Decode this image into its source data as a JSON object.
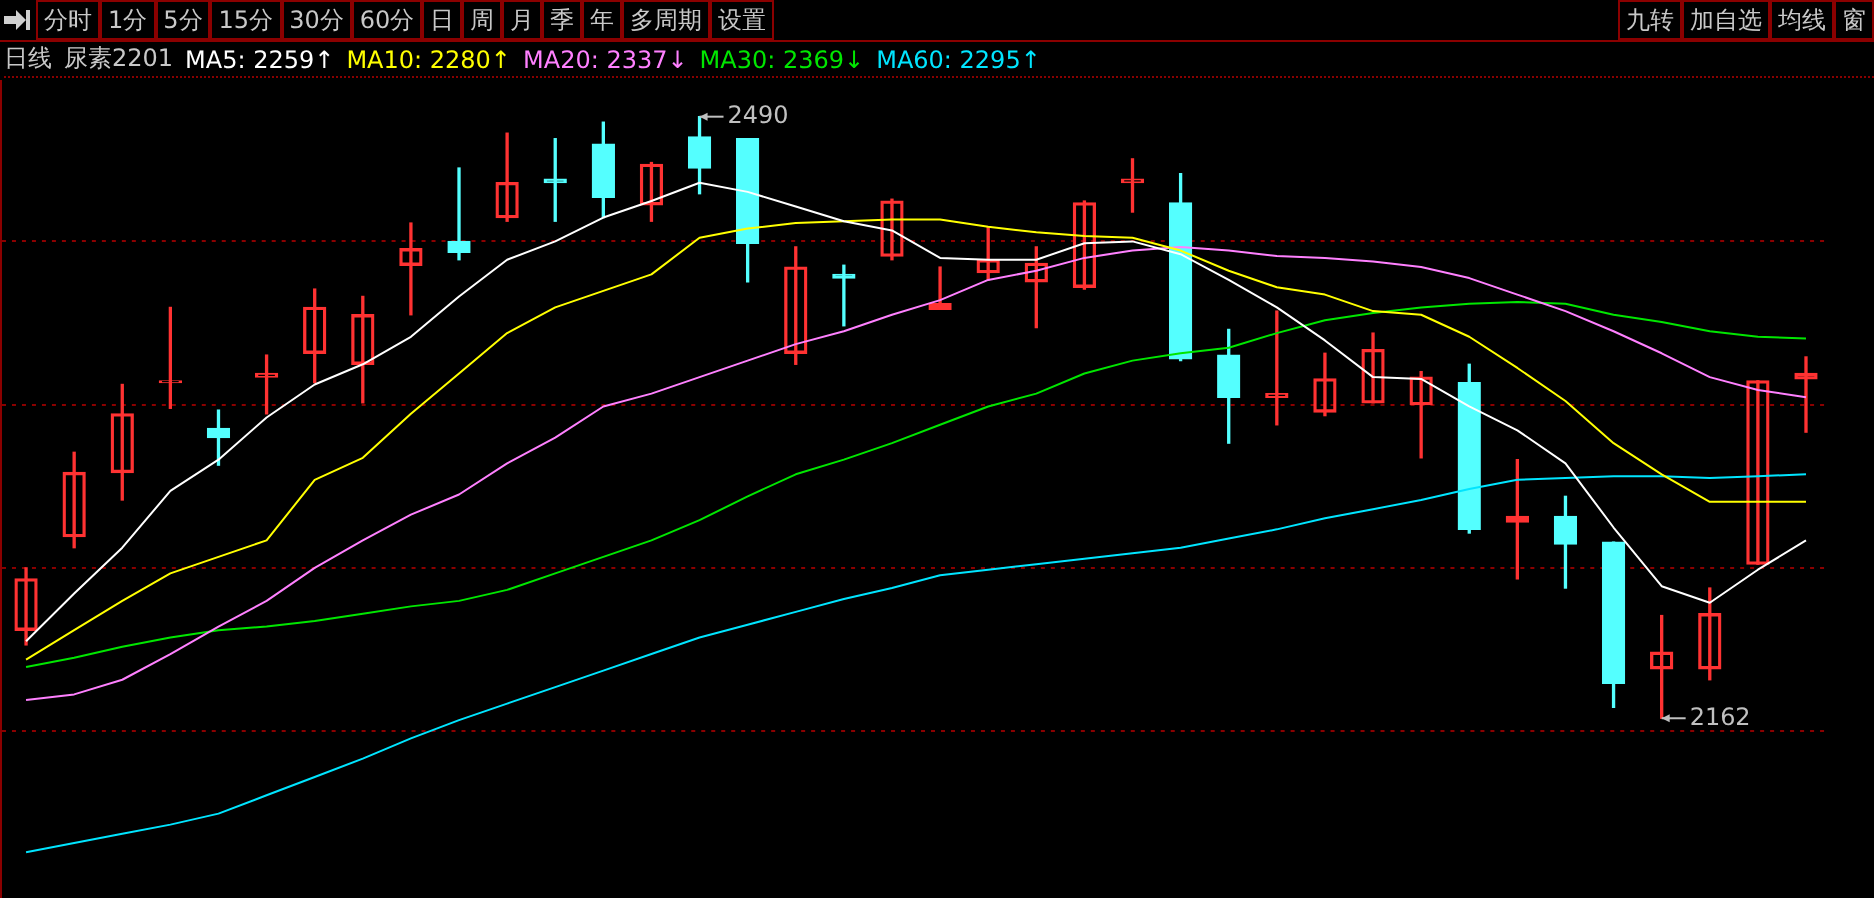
{
  "chart_data": {
    "type": "candlestick",
    "title": "日线",
    "subtitle": "尿素2201",
    "categories": [
      null,
      null,
      null,
      null,
      null,
      null,
      null,
      null,
      null,
      null,
      null,
      null,
      null,
      null,
      null,
      null,
      null,
      null,
      null,
      null,
      null,
      null,
      null,
      null,
      null,
      null,
      null,
      null,
      null,
      null,
      null,
      null,
      null,
      null,
      null,
      null,
      null,
      null
    ],
    "ohlc": [
      [
        2210,
        2244,
        2202,
        2238
      ],
      [
        2261,
        2307,
        2255,
        2296
      ],
      [
        2296,
        2344,
        2281,
        2328
      ],
      [
        2345,
        2386,
        2331,
        2346
      ],
      [
        2320,
        2330,
        2300,
        2315
      ],
      [
        2348,
        2360,
        2328,
        2350
      ],
      [
        2361,
        2396,
        2345,
        2386
      ],
      [
        2355,
        2392,
        2334,
        2382
      ],
      [
        2409,
        2432,
        2382,
        2418
      ],
      [
        2422,
        2462,
        2412,
        2416
      ],
      [
        2435,
        2481,
        2433,
        2454
      ],
      [
        2456,
        2478,
        2433,
        2454
      ],
      [
        2475,
        2487,
        2435,
        2446
      ],
      [
        2442,
        2465,
        2433,
        2464
      ],
      [
        2479,
        2490,
        2448,
        2462
      ],
      [
        2478,
        2478,
        2400,
        2421
      ],
      [
        2361,
        2419,
        2355,
        2408
      ],
      [
        2404,
        2409,
        2376,
        2402
      ],
      [
        2414,
        2445,
        2412,
        2444
      ],
      [
        2385,
        2408,
        2385,
        2388
      ],
      [
        2405,
        2430,
        2401,
        2412
      ],
      [
        2400,
        2419,
        2375,
        2410
      ],
      [
        2397,
        2444,
        2396,
        2443
      ],
      [
        2454,
        2467,
        2438,
        2456
      ],
      [
        2443,
        2459,
        2357,
        2358
      ],
      [
        2360,
        2374,
        2312,
        2337
      ],
      [
        2337,
        2384,
        2322,
        2339
      ],
      [
        2329,
        2361,
        2327,
        2347
      ],
      [
        2334,
        2372,
        2334,
        2363
      ],
      [
        2333,
        2351,
        2304,
        2348
      ],
      [
        2345,
        2355,
        2263,
        2265
      ],
      [
        2269,
        2303,
        2238,
        2272
      ],
      [
        2272,
        2283,
        2233,
        2257
      ],
      [
        2258,
        2258,
        2168,
        2181
      ],
      [
        2189,
        2218,
        2162,
        2198
      ],
      [
        2189,
        2233,
        2183,
        2219
      ],
      [
        2246,
        2346,
        2246,
        2346
      ],
      [
        2347,
        2359,
        2318,
        2350
      ]
    ],
    "colors": [
      "#ff3232",
      "#ff3232",
      "#ff3232",
      "#ff3232",
      "#54ffff",
      "#ff3232",
      "#ff3232",
      "#ff3232",
      "#ff3232",
      "#54ffff",
      "#ff3232",
      "#54ffff",
      "#54ffff",
      "#ff3232",
      "#54ffff",
      "#54ffff",
      "#ff3232",
      "#54ffff",
      "#ff3232",
      "#ff3232",
      "#ff3232",
      "#ff3232",
      "#ff3232",
      "#ff3232",
      "#54ffff",
      "#54ffff",
      "#ff3232",
      "#ff3232",
      "#ff3232",
      "#ff3232",
      "#54ffff",
      "#ff3232",
      "#54ffff",
      "#54ffff",
      "#ff3232",
      "#ff3232",
      "#ff3232",
      "#ff3232"
    ],
    "series": [
      {
        "type": "line",
        "name": "MA5: 2259↑",
        "color": "#ffffff",
        "values": [
          2204,
          2230,
          2255,
          2286,
          2303,
          2326,
          2344,
          2355,
          2370,
          2392,
          2412,
          2422,
          2435,
          2444,
          2454,
          2449,
          2441,
          2433,
          2428,
          2413,
          2412,
          2412,
          2421,
          2422,
          2415,
          2401,
          2386,
          2368,
          2348,
          2347,
          2332,
          2319,
          2301,
          2266,
          2234,
          2225,
          2243,
          2259
        ]
      },
      {
        "type": "line",
        "name": "MA10: 2280↑",
        "color": "#ffff00",
        "values": [
          2194,
          2210,
          2226,
          2241,
          2250,
          2259,
          2292,
          2304,
          2328,
          2350,
          2372,
          2386,
          2395,
          2404,
          2424,
          2429,
          2432,
          2433,
          2434,
          2434,
          2430,
          2427,
          2425,
          2424,
          2417,
          2406,
          2397,
          2393,
          2384,
          2382,
          2370,
          2353,
          2335,
          2312,
          2295,
          2280,
          2280,
          2280
        ]
      },
      {
        "type": "line",
        "name": "MA20: 2337↓",
        "color": "#ff80ff",
        "values": [
          2172,
          2175,
          2183,
          2197,
          2212,
          2226,
          2244,
          2259,
          2273,
          2284,
          2301,
          2315,
          2332,
          2339,
          2348,
          2357,
          2366,
          2373,
          2382,
          2390,
          2401,
          2406,
          2413,
          2417,
          2419,
          2417,
          2414,
          2413,
          2411,
          2408,
          2402,
          2393,
          2384,
          2373,
          2361,
          2348,
          2341,
          2337
        ]
      },
      {
        "type": "line",
        "name": "MA30: 2369↓",
        "color": "#00e600",
        "values": [
          2190,
          2195,
          2201,
          2206,
          2210,
          2212,
          2215,
          2219,
          2223,
          2226,
          2232,
          2241,
          2250,
          2259,
          2270,
          2283,
          2295,
          2303,
          2312,
          2322,
          2332,
          2339,
          2350,
          2357,
          2361,
          2364,
          2372,
          2379,
          2383,
          2386,
          2388,
          2389,
          2388,
          2382,
          2378,
          2373,
          2370,
          2369
        ]
      },
      {
        "type": "line",
        "name": "MA60: 2295↑",
        "color": "#00e5ff",
        "values": [
          2089,
          2094,
          2099,
          2104,
          2110,
          2120,
          2130,
          2140,
          2151,
          2161,
          2170,
          2179,
          2188,
          2197,
          2206,
          2213,
          2220,
          2227,
          2233,
          2240,
          2243,
          2246,
          2249,
          2252,
          2255,
          2260,
          2265,
          2271,
          2276,
          2281,
          2287,
          2292,
          2293,
          2294,
          2294,
          2293,
          2294,
          2295
        ]
      }
    ],
    "ylim": [
      2064,
      2510
    ],
    "yticks": [
      {
        "value": 2422,
        "label": null
      },
      {
        "value": 2333,
        "label": null
      },
      {
        "value": 2244,
        "label": null
      },
      {
        "value": 2155,
        "label": null
      }
    ],
    "grid": "y",
    "legend": "top",
    "annotations": [
      "分时",
      "1分",
      "5分",
      "15分",
      "30分",
      "60分",
      "日",
      "周",
      "月",
      "季",
      "年",
      "多周期",
      "设置",
      "九转",
      "加自选",
      "均线",
      "窗",
      "2490",
      "2162"
    ]
  }
}
